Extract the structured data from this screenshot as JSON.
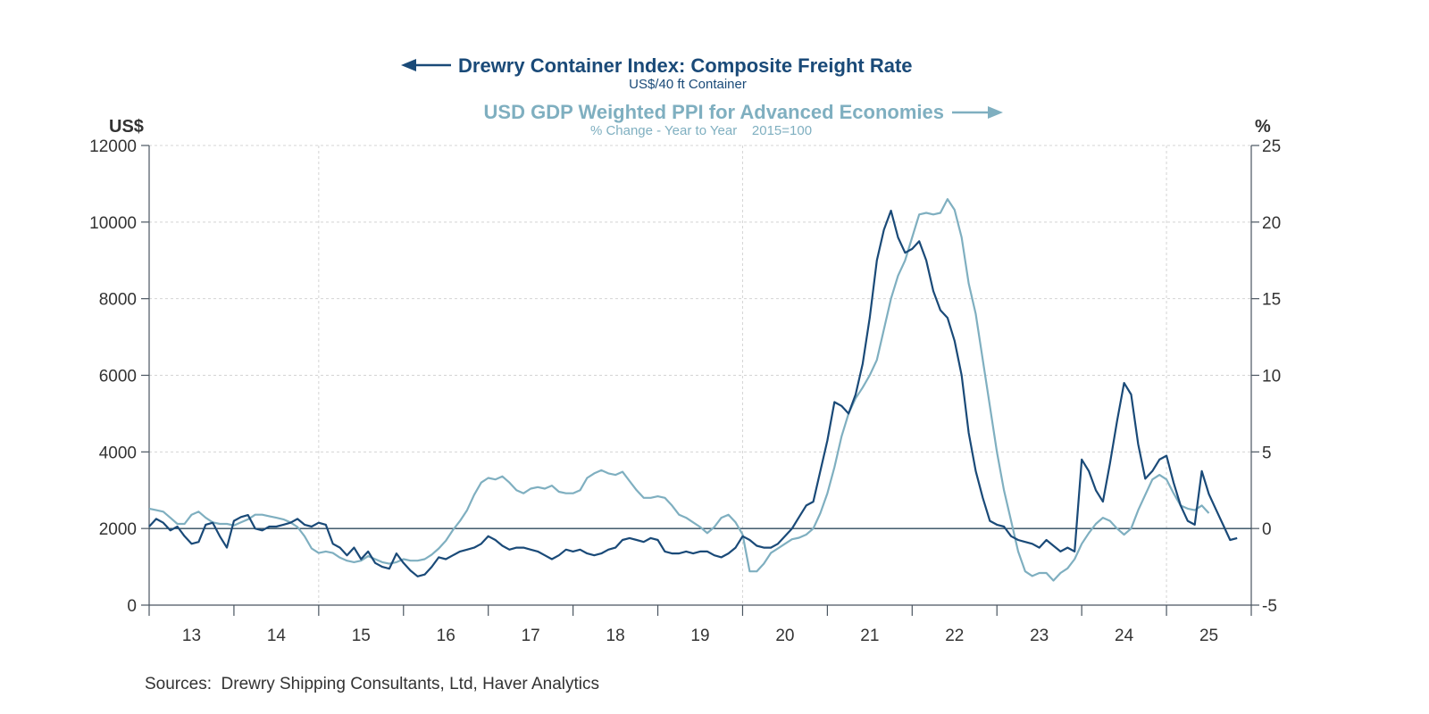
{
  "chart_data": {
    "type": "line",
    "title": "Drewry Container Index: Composite Freight Rate",
    "subtitle": "US$/40 ft Container",
    "title2": "USD GDP Weighted PPI for Advanced Economies",
    "subtitle2": "% Change - Year to Year    2015=100",
    "ylabel_left": "US$",
    "ylabel_right": "%",
    "ylim_left": [
      0,
      12000
    ],
    "ylim_right": [
      -5,
      25
    ],
    "yticks_left": [
      "0",
      "2000",
      "4000",
      "6000",
      "8000",
      "10000",
      "12000"
    ],
    "yticks_right": [
      "-5",
      "0",
      "5",
      "10",
      "15",
      "20",
      "25"
    ],
    "xticks": [
      "13",
      "14",
      "15",
      "16",
      "17",
      "18",
      "19",
      "20",
      "21",
      "22",
      "23",
      "24",
      "25"
    ],
    "xlim": [
      2013,
      2026
    ],
    "grid": true,
    "zero_line_right": 0,
    "colors": {
      "drewry": "#1a4a78",
      "ppi": "#7fafc0"
    },
    "series": [
      {
        "name": "Drewry Container Index: Composite Freight Rate",
        "axis": "left",
        "start": "2013-01",
        "frequency": "monthly",
        "values": [
          2050,
          2250,
          2150,
          1950,
          2050,
          1800,
          1600,
          1650,
          2100,
          2150,
          1800,
          1500,
          2200,
          2300,
          2350,
          2000,
          1950,
          2050,
          2050,
          2100,
          2150,
          2250,
          2100,
          2050,
          2150,
          2100,
          1600,
          1500,
          1300,
          1500,
          1200,
          1400,
          1100,
          1000,
          950,
          1350,
          1100,
          900,
          750,
          800,
          1000,
          1250,
          1200,
          1300,
          1400,
          1450,
          1500,
          1600,
          1800,
          1700,
          1550,
          1450,
          1500,
          1500,
          1450,
          1400,
          1300,
          1200,
          1300,
          1450,
          1400,
          1450,
          1350,
          1300,
          1350,
          1450,
          1500,
          1700,
          1750,
          1700,
          1650,
          1750,
          1700,
          1400,
          1350,
          1350,
          1400,
          1350,
          1400,
          1400,
          1300,
          1250,
          1350,
          1500,
          1800,
          1700,
          1550,
          1500,
          1500,
          1600,
          1800,
          2000,
          2300,
          2600,
          2700,
          3500,
          4300,
          5300,
          5200,
          5000,
          5500,
          6300,
          7500,
          9000,
          9800,
          10300,
          9600,
          9200,
          9300,
          9500,
          9000,
          8200,
          7700,
          7500,
          6900,
          6000,
          4500,
          3500,
          2800,
          2200,
          2100,
          2050,
          1800,
          1700,
          1650,
          1600,
          1500,
          1700,
          1550,
          1400,
          1500,
          1400,
          3800,
          3500,
          3000,
          2700,
          3700,
          4800,
          5800,
          5500,
          4200,
          3300,
          3500,
          3800,
          3900,
          3200,
          2600,
          2200,
          2100,
          3500,
          2900,
          2500,
          2100,
          1700,
          1750
        ]
      },
      {
        "name": "USD GDP Weighted PPI for Advanced Economies",
        "axis": "right",
        "start": "2013-01",
        "frequency": "monthly",
        "values": [
          1.3,
          1.2,
          1.1,
          0.7,
          0.3,
          0.3,
          0.9,
          1.1,
          0.7,
          0.4,
          0.3,
          0.3,
          0.2,
          0.4,
          0.6,
          0.9,
          0.9,
          0.8,
          0.7,
          0.6,
          0.4,
          0.1,
          -0.5,
          -1.3,
          -1.6,
          -1.5,
          -1.6,
          -1.9,
          -2.1,
          -2.2,
          -2.1,
          -1.8,
          -2.0,
          -2.2,
          -2.3,
          -2.2,
          -2.0,
          -2.1,
          -2.1,
          -2.0,
          -1.7,
          -1.3,
          -0.8,
          -0.1,
          0.5,
          1.2,
          2.2,
          3.0,
          3.3,
          3.2,
          3.4,
          3.0,
          2.5,
          2.3,
          2.6,
          2.7,
          2.6,
          2.8,
          2.4,
          2.3,
          2.3,
          2.5,
          3.3,
          3.6,
          3.8,
          3.6,
          3.5,
          3.7,
          3.1,
          2.5,
          2.0,
          2.0,
          2.1,
          2.0,
          1.5,
          0.9,
          0.7,
          0.4,
          0.1,
          -0.3,
          0.1,
          0.7,
          0.9,
          0.4,
          -0.4,
          -2.8,
          -2.8,
          -2.3,
          -1.6,
          -1.3,
          -1.0,
          -0.7,
          -0.6,
          -0.4,
          0.0,
          1.0,
          2.3,
          4.0,
          6.0,
          7.5,
          8.5,
          9.2,
          10.0,
          11.0,
          13.0,
          15.0,
          16.5,
          17.5,
          19.0,
          20.5,
          20.6,
          20.5,
          20.6,
          21.5,
          20.8,
          19.0,
          16.0,
          14.0,
          11.0,
          8.0,
          5.0,
          2.5,
          0.5,
          -1.5,
          -2.8,
          -3.1,
          -2.9,
          -2.9,
          -3.4,
          -2.9,
          -2.6,
          -2.0,
          -1.0,
          -0.3,
          0.3,
          0.7,
          0.5,
          0.0,
          -0.4,
          0.0,
          1.2,
          2.2,
          3.2,
          3.5,
          3.2,
          2.3,
          1.5,
          1.3,
          1.2,
          1.5,
          1.0
        ]
      }
    ]
  },
  "footer": {
    "sources": "Sources:  Drewry Shipping Consultants, Ltd, Haver Analytics"
  }
}
